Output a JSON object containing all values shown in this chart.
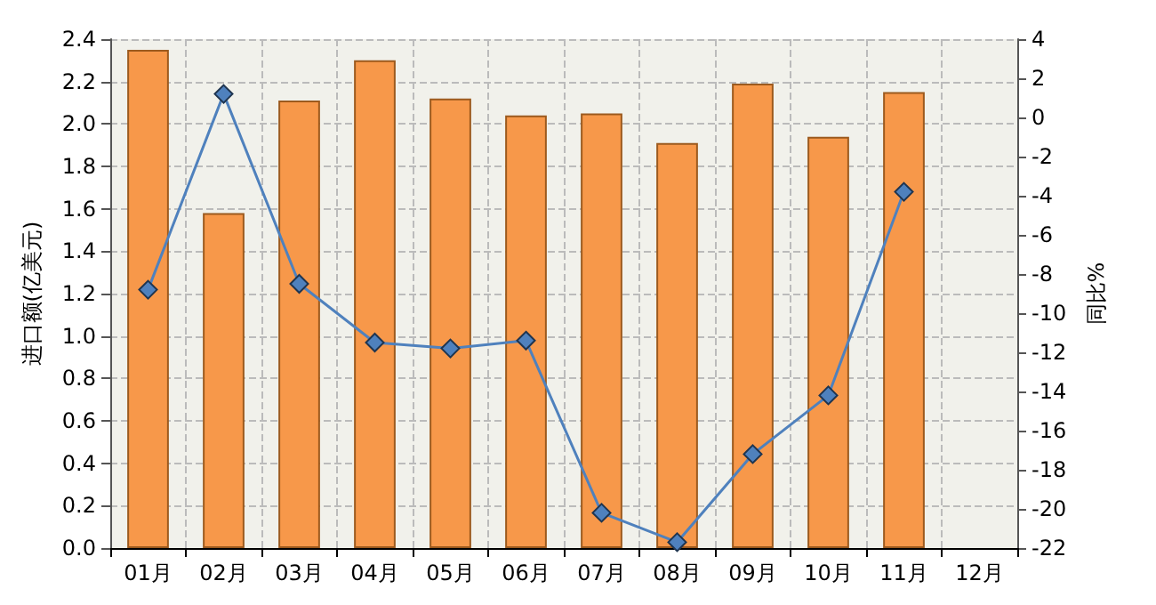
{
  "chart_data": {
    "type": "bar",
    "ylabel": "进口额(亿美元)",
    "y2label": "同比%",
    "categories": [
      "01月",
      "02月",
      "03月",
      "04月",
      "05月",
      "06月",
      "07月",
      "08月",
      "09月",
      "10月",
      "11月",
      "12月"
    ],
    "series": [
      {
        "color": "#f7984a",
        "values": [
          2.35,
          1.58,
          2.11,
          2.3,
          2.12,
          2.04,
          2.05,
          1.91,
          2.19,
          1.94,
          2.15,
          null
        ]
      },
      {
        "type": "line",
        "axis": "y2",
        "color": "#4f81bd",
        "marker": "diamond",
        "values": [
          -8.8,
          1.2,
          -8.5,
          -11.5,
          -11.8,
          -11.4,
          -20.2,
          -21.7,
          -17.2,
          -14.2,
          -3.8,
          null
        ]
      }
    ],
    "ylim": [
      0,
      2.4
    ],
    "yticks": [
      {
        "value": 0,
        "label": "0.0"
      },
      0.2,
      0.4,
      0.6,
      0.8,
      {
        "value": 1,
        "label": "1.0"
      },
      1.2,
      1.4,
      1.6,
      1.8,
      {
        "value": 2,
        "label": "2.0"
      },
      2.2,
      2.4
    ],
    "y2lim": [
      -22,
      4
    ],
    "y2ticks": [
      -22,
      -20,
      -18,
      -16,
      -14,
      -12,
      -10,
      -8,
      -6,
      -4,
      -2,
      0,
      2,
      4
    ],
    "grid": true
  }
}
